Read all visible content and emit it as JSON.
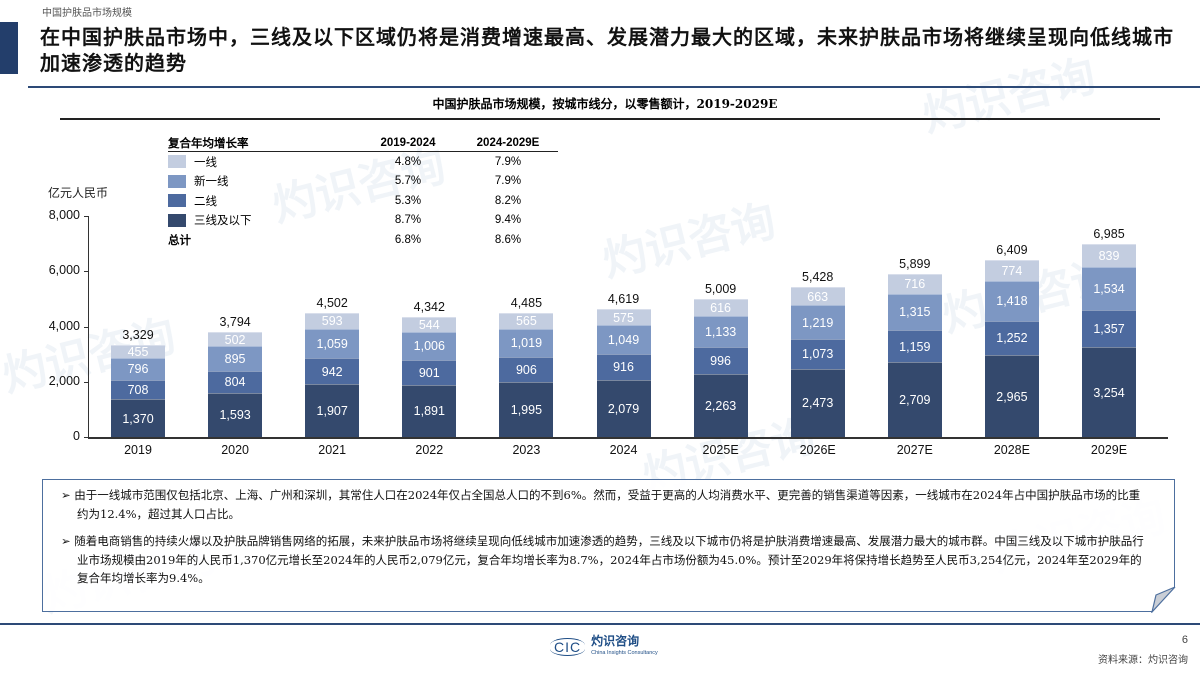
{
  "page": {
    "section_label": "中国护肤品市场规模",
    "title": "在中国护肤品市场中，三线及以下区域仍将是消费增速最高、发展潜力最大的区域，未来护肤品市场将继续呈现向低线城市加速渗透的趋势",
    "page_number": "6",
    "source": "资料来源：灼识咨询",
    "logo": {
      "mark": "CIC",
      "name_cn": "灼识咨询",
      "name_en": "China Insights Consultancy"
    },
    "watermark_cn": "灼识咨询",
    "watermark_en": "China Insights Consultancy"
  },
  "colors": {
    "tier1": "#c3cde0",
    "new_tier1": "#7d97c3",
    "tier2": "#4d6a9f",
    "tier3_below": "#34496d",
    "accent": "#233e6b"
  },
  "legend": {
    "header": {
      "name": "复合年均增长率",
      "c1": "2019-2024",
      "c2": "2024-2029E"
    },
    "rows": [
      {
        "name": "一线",
        "c1": "4.8%",
        "c2": "7.9%",
        "color_key": "tier1"
      },
      {
        "name": "新一线",
        "c1": "5.7%",
        "c2": "7.9%",
        "color_key": "new_tier1"
      },
      {
        "name": "二线",
        "c1": "5.3%",
        "c2": "8.2%",
        "color_key": "tier2"
      },
      {
        "name": "三线及以下",
        "c1": "8.7%",
        "c2": "9.4%",
        "color_key": "tier3_below"
      }
    ],
    "total": {
      "name": "总计",
      "c1": "6.8%",
      "c2": "8.6%"
    }
  },
  "chart_data": {
    "type": "bar",
    "stacked": true,
    "title": "中国护肤品市场规模，按城市线分，以零售额计，2019-2029E",
    "xlabel": "",
    "ylabel": "亿元人民币",
    "ylim": [
      0,
      8000
    ],
    "yticks": [
      "0",
      "2,000",
      "4,000",
      "6,000",
      "8,000"
    ],
    "grid": false,
    "legend_position": "top-left table",
    "categories": [
      "2019",
      "2020",
      "2021",
      "2022",
      "2023",
      "2024",
      "2025E",
      "2026E",
      "2027E",
      "2028E",
      "2029E"
    ],
    "series": [
      {
        "name": "三线及以下",
        "values": [
          1370,
          1593,
          1907,
          1891,
          1995,
          2079,
          2263,
          2473,
          2709,
          2965,
          3254
        ],
        "labels": [
          "1,370",
          "1,593",
          "1,907",
          "1,891",
          "1,995",
          "2,079",
          "2,263",
          "2,473",
          "2,709",
          "2,965",
          "3,254"
        ]
      },
      {
        "name": "二线",
        "values": [
          708,
          804,
          942,
          901,
          906,
          916,
          996,
          1073,
          1159,
          1252,
          1357
        ],
        "labels": [
          "708",
          "804",
          "942",
          "901",
          "906",
          "916",
          "996",
          "1,073",
          "1,159",
          "1,252",
          "1,357"
        ]
      },
      {
        "name": "新一线",
        "values": [
          796,
          895,
          1059,
          1006,
          1019,
          1049,
          1133,
          1219,
          1315,
          1418,
          1534
        ],
        "labels": [
          "796",
          "895",
          "1,059",
          "1,006",
          "1,019",
          "1,049",
          "1,133",
          "1,219",
          "1,315",
          "1,418",
          "1,534"
        ]
      },
      {
        "name": "一线",
        "values": [
          455,
          502,
          593,
          544,
          565,
          575,
          616,
          663,
          716,
          774,
          839
        ],
        "labels": [
          "455",
          "502",
          "593",
          "544",
          "565",
          "575",
          "616",
          "663",
          "716",
          "774",
          "839"
        ]
      }
    ],
    "totals": [
      3329,
      3794,
      4502,
      4342,
      4485,
      4619,
      5009,
      5428,
      5899,
      6409,
      6985
    ],
    "total_labels": [
      "3,329",
      "3,794",
      "4,502",
      "4,342",
      "4,485",
      "4,619",
      "5,009",
      "5,428",
      "5,899",
      "6,409",
      "6,985"
    ]
  },
  "callout": {
    "bullets": [
      "由于一线城市范围仅包括北京、上海、广州和深圳，其常住人口在2024年仅占全国总人口的不到6%。然而，受益于更高的人均消费水平、更完善的销售渠道等因素，一线城市在2024年占中国护肤品市场的比重约为12.4%，超过其人口占比。",
      "随着电商销售的持续火爆以及护肤品牌销售网络的拓展，未来护肤品市场将继续呈现向低线城市加速渗透的趋势，三线及以下城市仍将是护肤消费增速最高、发展潜力最大的城市群。中国三线及以下城市护肤品行业市场规模由2019年的人民币1,370亿元增长至2024年的人民币2,079亿元，复合年均增长率为8.7%，2024年占市场份额为45.0%。预计至2029年将保持增长趋势至人民币3,254亿元，2024年至2029年的复合年均增长率为9.4%。"
    ]
  }
}
